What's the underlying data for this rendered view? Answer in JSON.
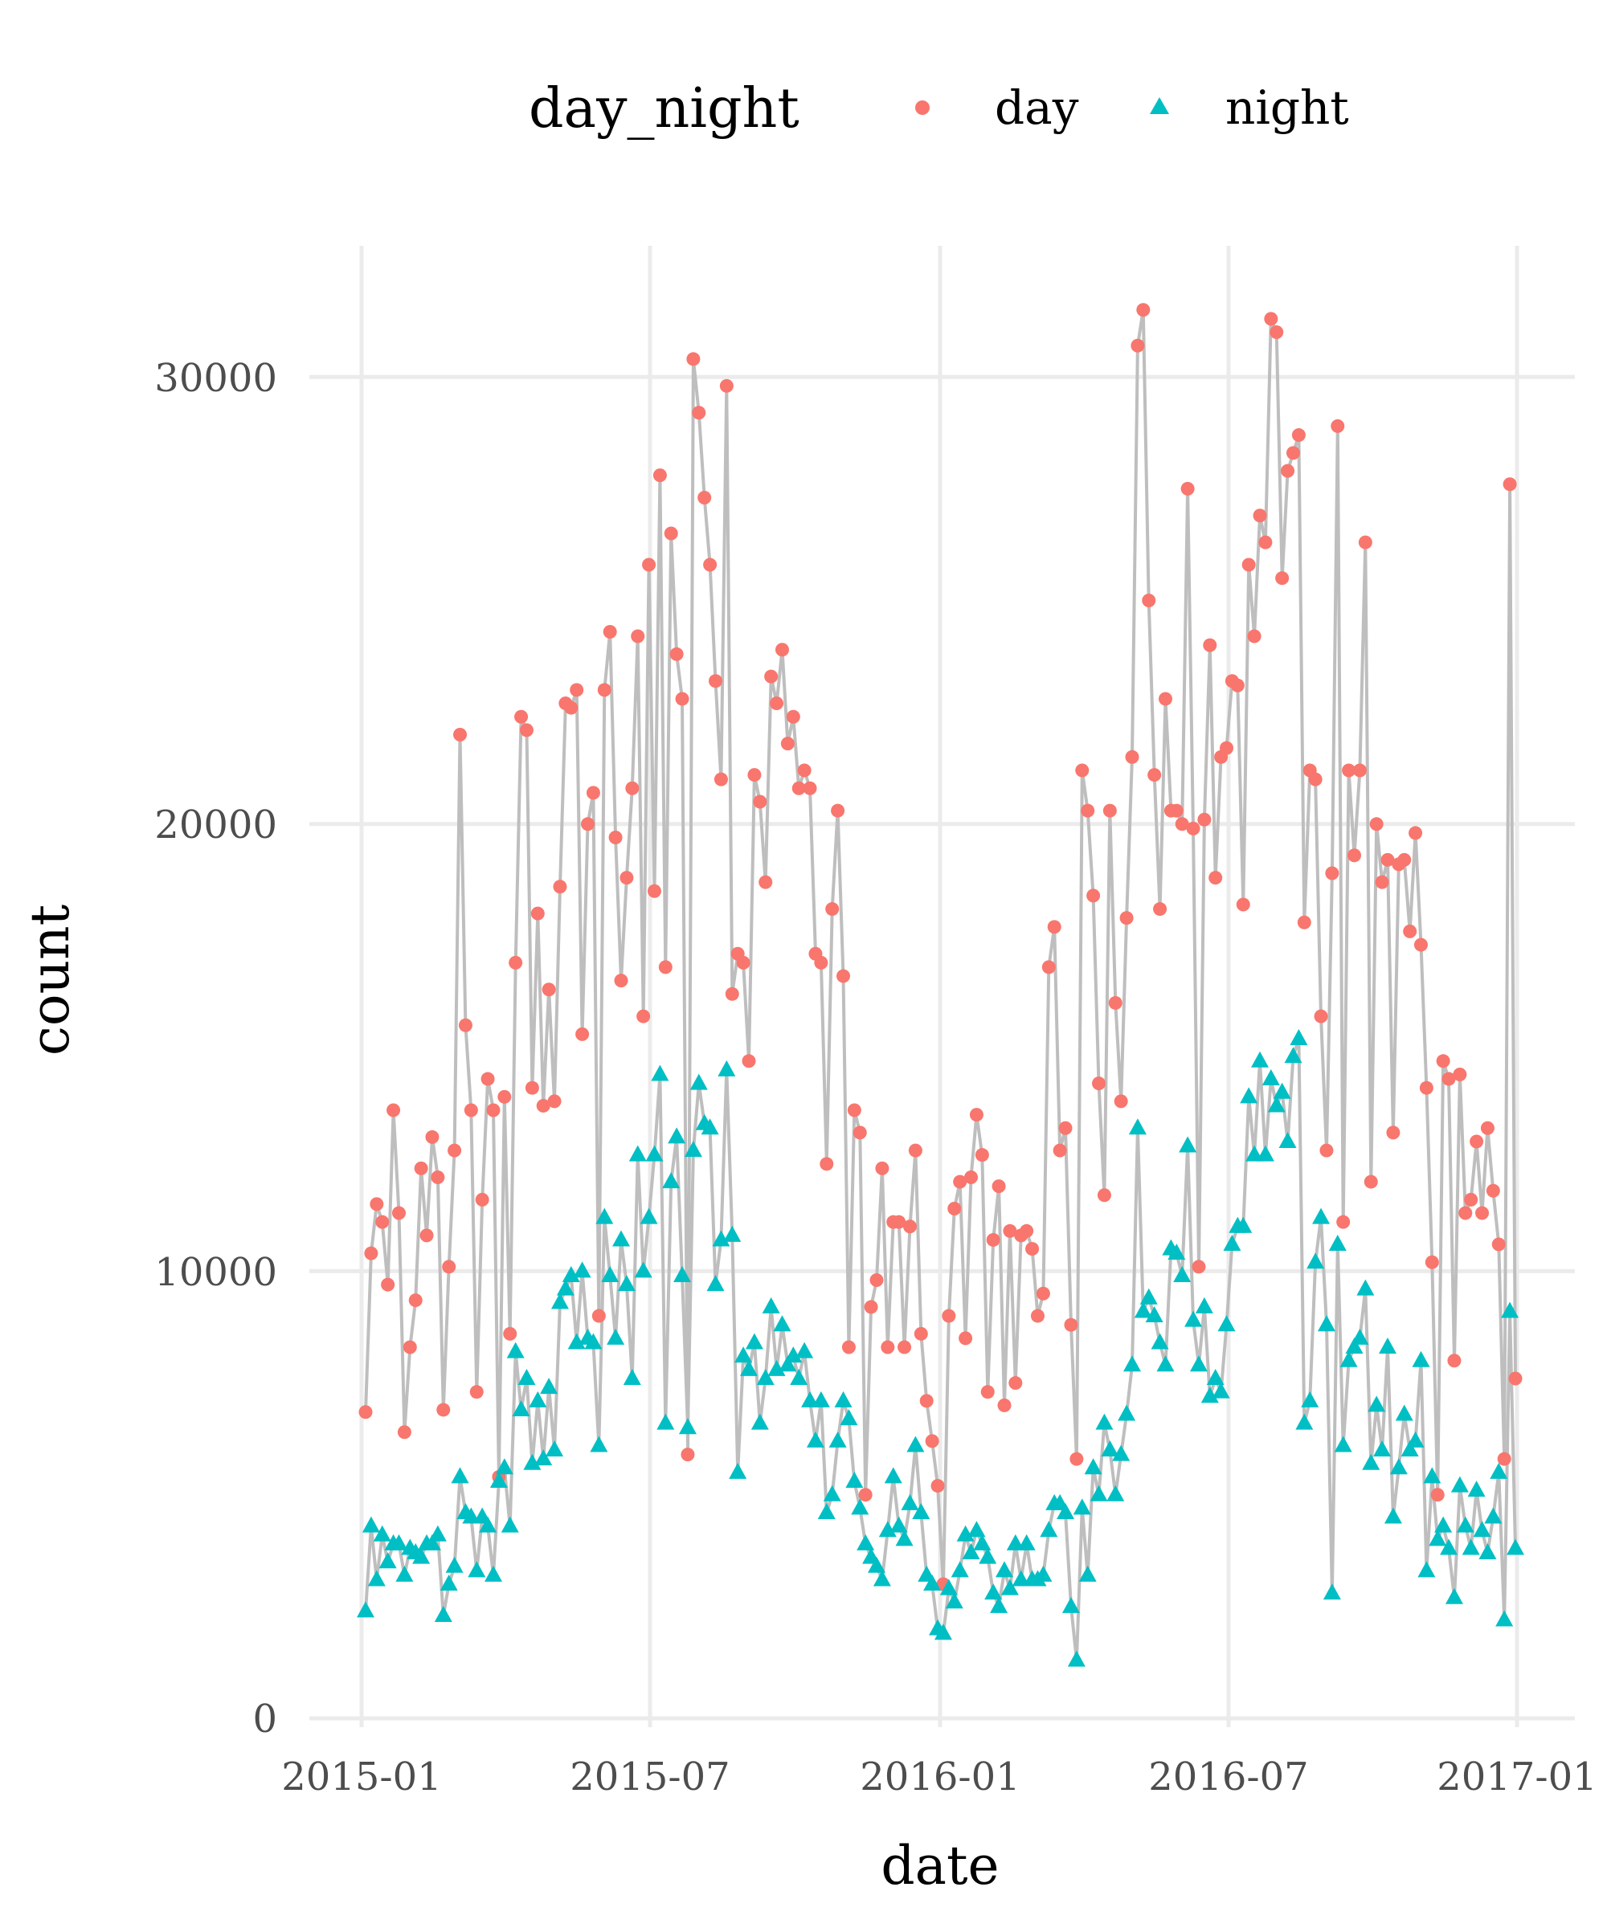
{
  "chart_data": {
    "type": "line",
    "title": "",
    "xlabel": "date",
    "ylabel": "count",
    "x_range": [
      "2015-01-01",
      "2016-12-31"
    ],
    "ylim": [
      0,
      32500
    ],
    "grid": true,
    "legend_position": "top",
    "legend_title": "day_night",
    "x_ticks": [
      "2015-01",
      "2015-07",
      "2016-01",
      "2016-07",
      "2017-01"
    ],
    "y_ticks": [
      "0",
      "10000",
      "20000",
      "30000"
    ],
    "y_tick_values": [
      0,
      10000,
      20000,
      30000
    ],
    "x_spacing": "evenly spaced observations from 2015-01-01 to 2016-12-31",
    "series": [
      {
        "name": "day",
        "color": "#F8766D",
        "marker": "circle",
        "values": [
          6850,
          10400,
          11500,
          11100,
          9700,
          13600,
          11300,
          6400,
          8300,
          9350,
          12300,
          10800,
          13000,
          12100,
          6900,
          10100,
          12700,
          22000,
          15500,
          13600,
          7300,
          11600,
          14300,
          13600,
          5400,
          13900,
          8600,
          16900,
          22400,
          22100,
          14100,
          18000,
          13700,
          16300,
          13800,
          18600,
          22700,
          22600,
          23000,
          15300,
          20000,
          20700,
          9000,
          23000,
          24300,
          19700,
          16500,
          18800,
          20800,
          24200,
          15700,
          25800,
          18500,
          27800,
          16800,
          26500,
          23800,
          22800,
          5900,
          30400,
          29200,
          27300,
          25800,
          23200,
          21000,
          29800,
          16200,
          17100,
          16900,
          14700,
          21100,
          20500,
          18700,
          23300,
          22700,
          23900,
          21800,
          22400,
          20800,
          21200,
          20800,
          17100,
          16900,
          12400,
          18100,
          20300,
          16600,
          8300,
          13600,
          13100,
          5000,
          9200,
          9800,
          12300,
          8300,
          11100,
          11100,
          8300,
          11000,
          12700,
          8600,
          7100,
          6200,
          5200,
          3000,
          9000,
          11400,
          12000,
          8500,
          12100,
          13500,
          12600,
          7300,
          10700,
          11900,
          7000,
          10900,
          7500,
          10800,
          10900,
          10500,
          9000,
          9500,
          16800,
          17700,
          12700,
          13200,
          8800,
          5800,
          21200,
          20300,
          18400,
          14200,
          11700,
          20300,
          16000,
          13800,
          17900,
          21500,
          30700,
          31500,
          25000,
          21100,
          18100,
          22800,
          20300,
          20300,
          20000,
          27500,
          19900,
          10100,
          20100,
          24000,
          18800,
          21500,
          21700,
          23200,
          23100,
          18200,
          25800,
          24200,
          26900,
          26300,
          31300,
          31000,
          25500,
          27900,
          28300,
          28700,
          17800,
          21200,
          21000,
          15700,
          12700,
          18900,
          28900,
          11100,
          21200,
          19300,
          21200,
          26300,
          12000,
          20000,
          18700,
          19200,
          13100,
          19100,
          19200,
          17600,
          19800,
          17300,
          14100,
          10200,
          5000,
          14700,
          14300,
          8000,
          14400,
          11300,
          11600,
          12900,
          11300,
          13200,
          11800,
          10600,
          5800,
          27600,
          7600
        ]
      },
      {
        "name": "night",
        "color": "#00BFC4",
        "marker": "triangle",
        "values": [
          2400,
          4300,
          3100,
          4100,
          3500,
          3900,
          3900,
          3200,
          3800,
          3700,
          3600,
          3900,
          3900,
          4100,
          2300,
          3000,
          3400,
          5400,
          4600,
          4500,
          3300,
          4500,
          4300,
          3200,
          5300,
          5600,
          4300,
          8200,
          6900,
          7600,
          5700,
          7100,
          5800,
          7400,
          6000,
          9300,
          9600,
          9900,
          8400,
          10000,
          8500,
          8400,
          6100,
          11200,
          9900,
          8500,
          10700,
          9700,
          7600,
          12600,
          10000,
          11200,
          12600,
          14400,
          6600,
          12000,
          13000,
          9900,
          6500,
          12700,
          14200,
          13300,
          13200,
          9700,
          10700,
          14500,
          10800,
          5500,
          8100,
          7800,
          8400,
          6600,
          7600,
          9200,
          7800,
          8800,
          7900,
          8100,
          7600,
          8200,
          7100,
          6200,
          7100,
          4600,
          5000,
          6200,
          7100,
          6700,
          5300,
          4700,
          3900,
          3600,
          3400,
          3100,
          4200,
          5400,
          4300,
          4000,
          4800,
          6100,
          4600,
          3200,
          3000,
          2000,
          1900,
          2900,
          2600,
          3300,
          4100,
          3700,
          4200,
          3900,
          3600,
          2800,
          2500,
          3300,
          2900,
          3900,
          3100,
          3900,
          3100,
          3100,
          3200,
          4200,
          4800,
          4800,
          4600,
          2500,
          1300,
          4700,
          3200,
          5600,
          5000,
          6600,
          6000,
          5000,
          5900,
          6800,
          7900,
          13200,
          9100,
          9400,
          9000,
          8400,
          7900,
          10500,
          10400,
          9900,
          12800,
          8900,
          7900,
          9200,
          7200,
          7600,
          7300,
          8800,
          10600,
          11000,
          11000,
          13900,
          12600,
          14700,
          12600,
          14300,
          13700,
          14000,
          12900,
          14800,
          15200,
          6600,
          7100,
          10200,
          11200,
          8800,
          2800,
          10600,
          6100,
          8000,
          8300,
          8500,
          9600,
          5700,
          7000,
          6000,
          8300,
          4500,
          5600,
          6800,
          6000,
          6200,
          8000,
          3300,
          5400,
          4000,
          4300,
          3800,
          2700,
          5200,
          4300,
          3800,
          5100,
          4200,
          3700,
          4500,
          5500,
          2200,
          9100,
          3800
        ]
      }
    ]
  }
}
